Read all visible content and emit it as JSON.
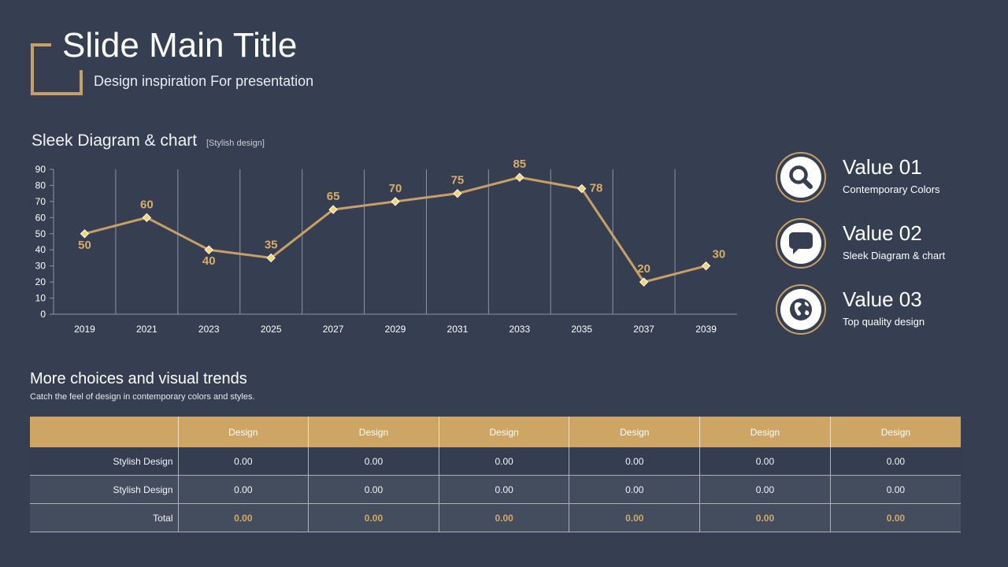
{
  "header": {
    "title": "Slide Main Title",
    "subtitle": "Design inspiration For presentation"
  },
  "chart_heading": {
    "title": "Sleek Diagram & chart",
    "tag": "[Stylish design]"
  },
  "chart_data": {
    "type": "line",
    "categories": [
      "2019",
      "2021",
      "2023",
      "2025",
      "2027",
      "2029",
      "2031",
      "2033",
      "2035",
      "2037",
      "2039"
    ],
    "series": [
      {
        "values": [
          50,
          60,
          40,
          35,
          65,
          70,
          75,
          85,
          78,
          20,
          30
        ]
      }
    ],
    "label_placement": [
      "below",
      "above",
      "below",
      "above",
      "above",
      "above",
      "above",
      "above",
      "right",
      "above",
      "above-right"
    ],
    "yticks": [
      0,
      10,
      20,
      30,
      40,
      50,
      60,
      70,
      80,
      90
    ],
    "ylim": [
      0,
      90
    ],
    "title": "",
    "xlabel": "",
    "ylabel": "",
    "grid": "vertical",
    "line_color": "#c9a063",
    "marker_color": "#f5d66e",
    "label_color": "#d8ad67"
  },
  "values": [
    {
      "title": "Value 01",
      "desc": "Contemporary Colors",
      "icon": "search-icon"
    },
    {
      "title": "Value 02",
      "desc": "Sleek Diagram & chart",
      "icon": "speech-bubble-icon"
    },
    {
      "title": "Value 03",
      "desc": "Top quality design",
      "icon": "globe-icon"
    }
  ],
  "section": {
    "title": "More choices and visual trends",
    "subtitle": "Catch the feel of design in contemporary colors and styles."
  },
  "table": {
    "headers": [
      "",
      "Design",
      "Design",
      "Design",
      "Design",
      "Design",
      "Design"
    ],
    "rows": [
      {
        "label": "Stylish Design",
        "cells": [
          "0.00",
          "0.00",
          "0.00",
          "0.00",
          "0.00",
          "0.00"
        ]
      },
      {
        "label": "Stylish Design",
        "cells": [
          "0.00",
          "0.00",
          "0.00",
          "0.00",
          "0.00",
          "0.00"
        ]
      },
      {
        "label": "Total",
        "cells": [
          "0.00",
          "0.00",
          "0.00",
          "0.00",
          "0.00",
          "0.00"
        ]
      }
    ]
  },
  "colors": {
    "background": "#353f51",
    "accent": "#c9a063",
    "table_header": "#cda565"
  }
}
